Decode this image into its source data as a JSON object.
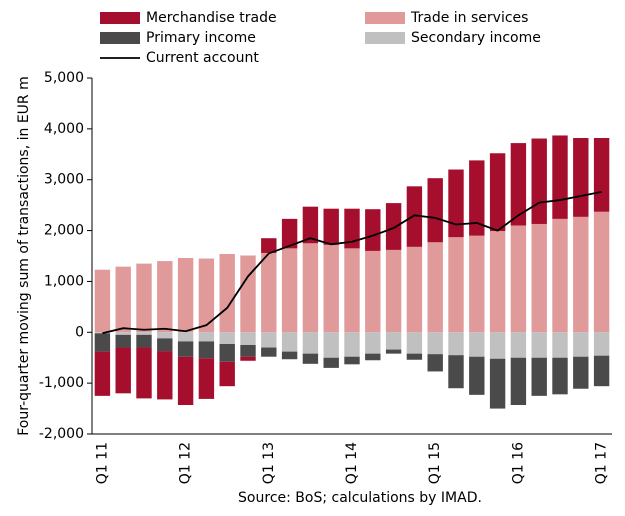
{
  "chart_data": {
    "type": "stacked_bar",
    "y_label": "Four-quarter moving sum of transactions, in EUR m",
    "source": "Source: BoS; calculations by IMAD.",
    "categories": [
      "Q1 11",
      null,
      null,
      null,
      "Q1 12",
      null,
      null,
      null,
      "Q1 13",
      null,
      null,
      null,
      "Q1 14",
      null,
      null,
      null,
      "Q1 15",
      null,
      null,
      null,
      "Q1 16",
      null,
      null,
      null,
      "Q1 17"
    ],
    "series": [
      {
        "name": "Trade in services",
        "color": "#e09a9a",
        "values": [
          1230,
          1290,
          1350,
          1400,
          1460,
          1450,
          1540,
          1510,
          1560,
          1650,
          1750,
          1720,
          1650,
          1600,
          1620,
          1680,
          1770,
          1870,
          1900,
          1990,
          2100,
          2130,
          2230,
          2270,
          2370
        ]
      },
      {
        "name": "Secondary income",
        "color": "#c0c0c0",
        "values": [
          -20,
          -50,
          -50,
          -120,
          -180,
          -180,
          -230,
          -250,
          -300,
          -380,
          -420,
          -500,
          -480,
          -420,
          -340,
          -420,
          -430,
          -450,
          -480,
          -520,
          -500,
          -500,
          -500,
          -480,
          -460
        ]
      },
      {
        "name": "Primary income",
        "color": "#4a4a4a",
        "values": [
          -360,
          -250,
          -250,
          -250,
          -300,
          -330,
          -350,
          -230,
          -180,
          -150,
          -200,
          -200,
          -150,
          -130,
          -80,
          -120,
          -340,
          -650,
          -750,
          -980,
          -930,
          -750,
          -720,
          -630,
          -600
        ]
      },
      {
        "name": "Merchandise trade",
        "color": "#a50e2d",
        "values": [
          -870,
          -900,
          -1000,
          -950,
          -950,
          -800,
          -480,
          -80,
          290,
          580,
          720,
          710,
          780,
          820,
          920,
          1190,
          1260,
          1330,
          1480,
          1530,
          1620,
          1680,
          1640,
          1550,
          1450
        ]
      }
    ],
    "line_series": {
      "name": "Current account",
      "color": "#000000",
      "values": [
        -20,
        80,
        50,
        70,
        20,
        140,
        480,
        1100,
        1550,
        1700,
        1850,
        1730,
        1780,
        1900,
        2050,
        2300,
        2250,
        2120,
        2150,
        2000,
        2300,
        2550,
        2600,
        2680,
        2760
      ]
    },
    "ylim": [
      -2000,
      5000
    ],
    "yticks": [
      {
        "value": -2000,
        "label": "-2,000"
      },
      {
        "value": -1000,
        "label": "-1,000"
      },
      0,
      {
        "value": 1000,
        "label": "1,000"
      },
      {
        "value": 2000,
        "label": "2,000"
      },
      {
        "value": 3000,
        "label": "3,000"
      },
      {
        "value": 4000,
        "label": "4,000"
      },
      {
        "value": 5000,
        "label": "5,000"
      }
    ]
  }
}
